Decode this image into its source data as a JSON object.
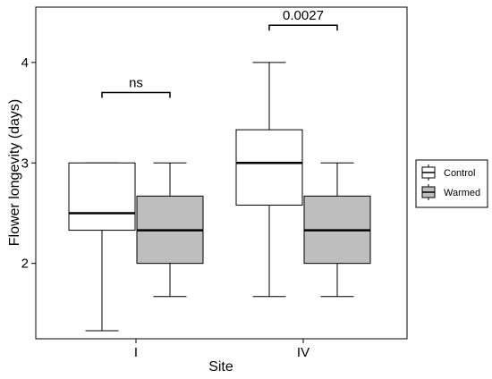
{
  "chart_data": {
    "type": "box",
    "xlabel": "Site",
    "ylabel": "Flower longevity (days)",
    "categories": [
      "I",
      "IV"
    ],
    "yticks": [
      2,
      3,
      4
    ],
    "ylim": [
      1.25,
      4.55
    ],
    "grid": false,
    "legend_position": "right",
    "series": [
      {
        "name": "Control",
        "color": "#ffffff",
        "boxes": [
          {
            "category": "I",
            "whisker_low": 1.33,
            "q1": 2.33,
            "median": 2.5,
            "q3": 3.0,
            "whisker_high": 3.0
          },
          {
            "category": "IV",
            "whisker_low": 1.67,
            "q1": 2.58,
            "median": 3.0,
            "q3": 3.33,
            "whisker_high": 4.0
          }
        ]
      },
      {
        "name": "Warmed",
        "color": "#bebebe",
        "boxes": [
          {
            "category": "I",
            "whisker_low": 1.67,
            "q1": 2.0,
            "median": 2.33,
            "q3": 2.67,
            "whisker_high": 3.0
          },
          {
            "category": "IV",
            "whisker_low": 1.67,
            "q1": 2.0,
            "median": 2.33,
            "q3": 2.67,
            "whisker_high": 3.0
          }
        ]
      }
    ],
    "annotations": [
      {
        "category": "I",
        "label": "ns",
        "y": 3.7
      },
      {
        "category": "IV",
        "label": "0.0027",
        "y": 4.37
      }
    ]
  }
}
